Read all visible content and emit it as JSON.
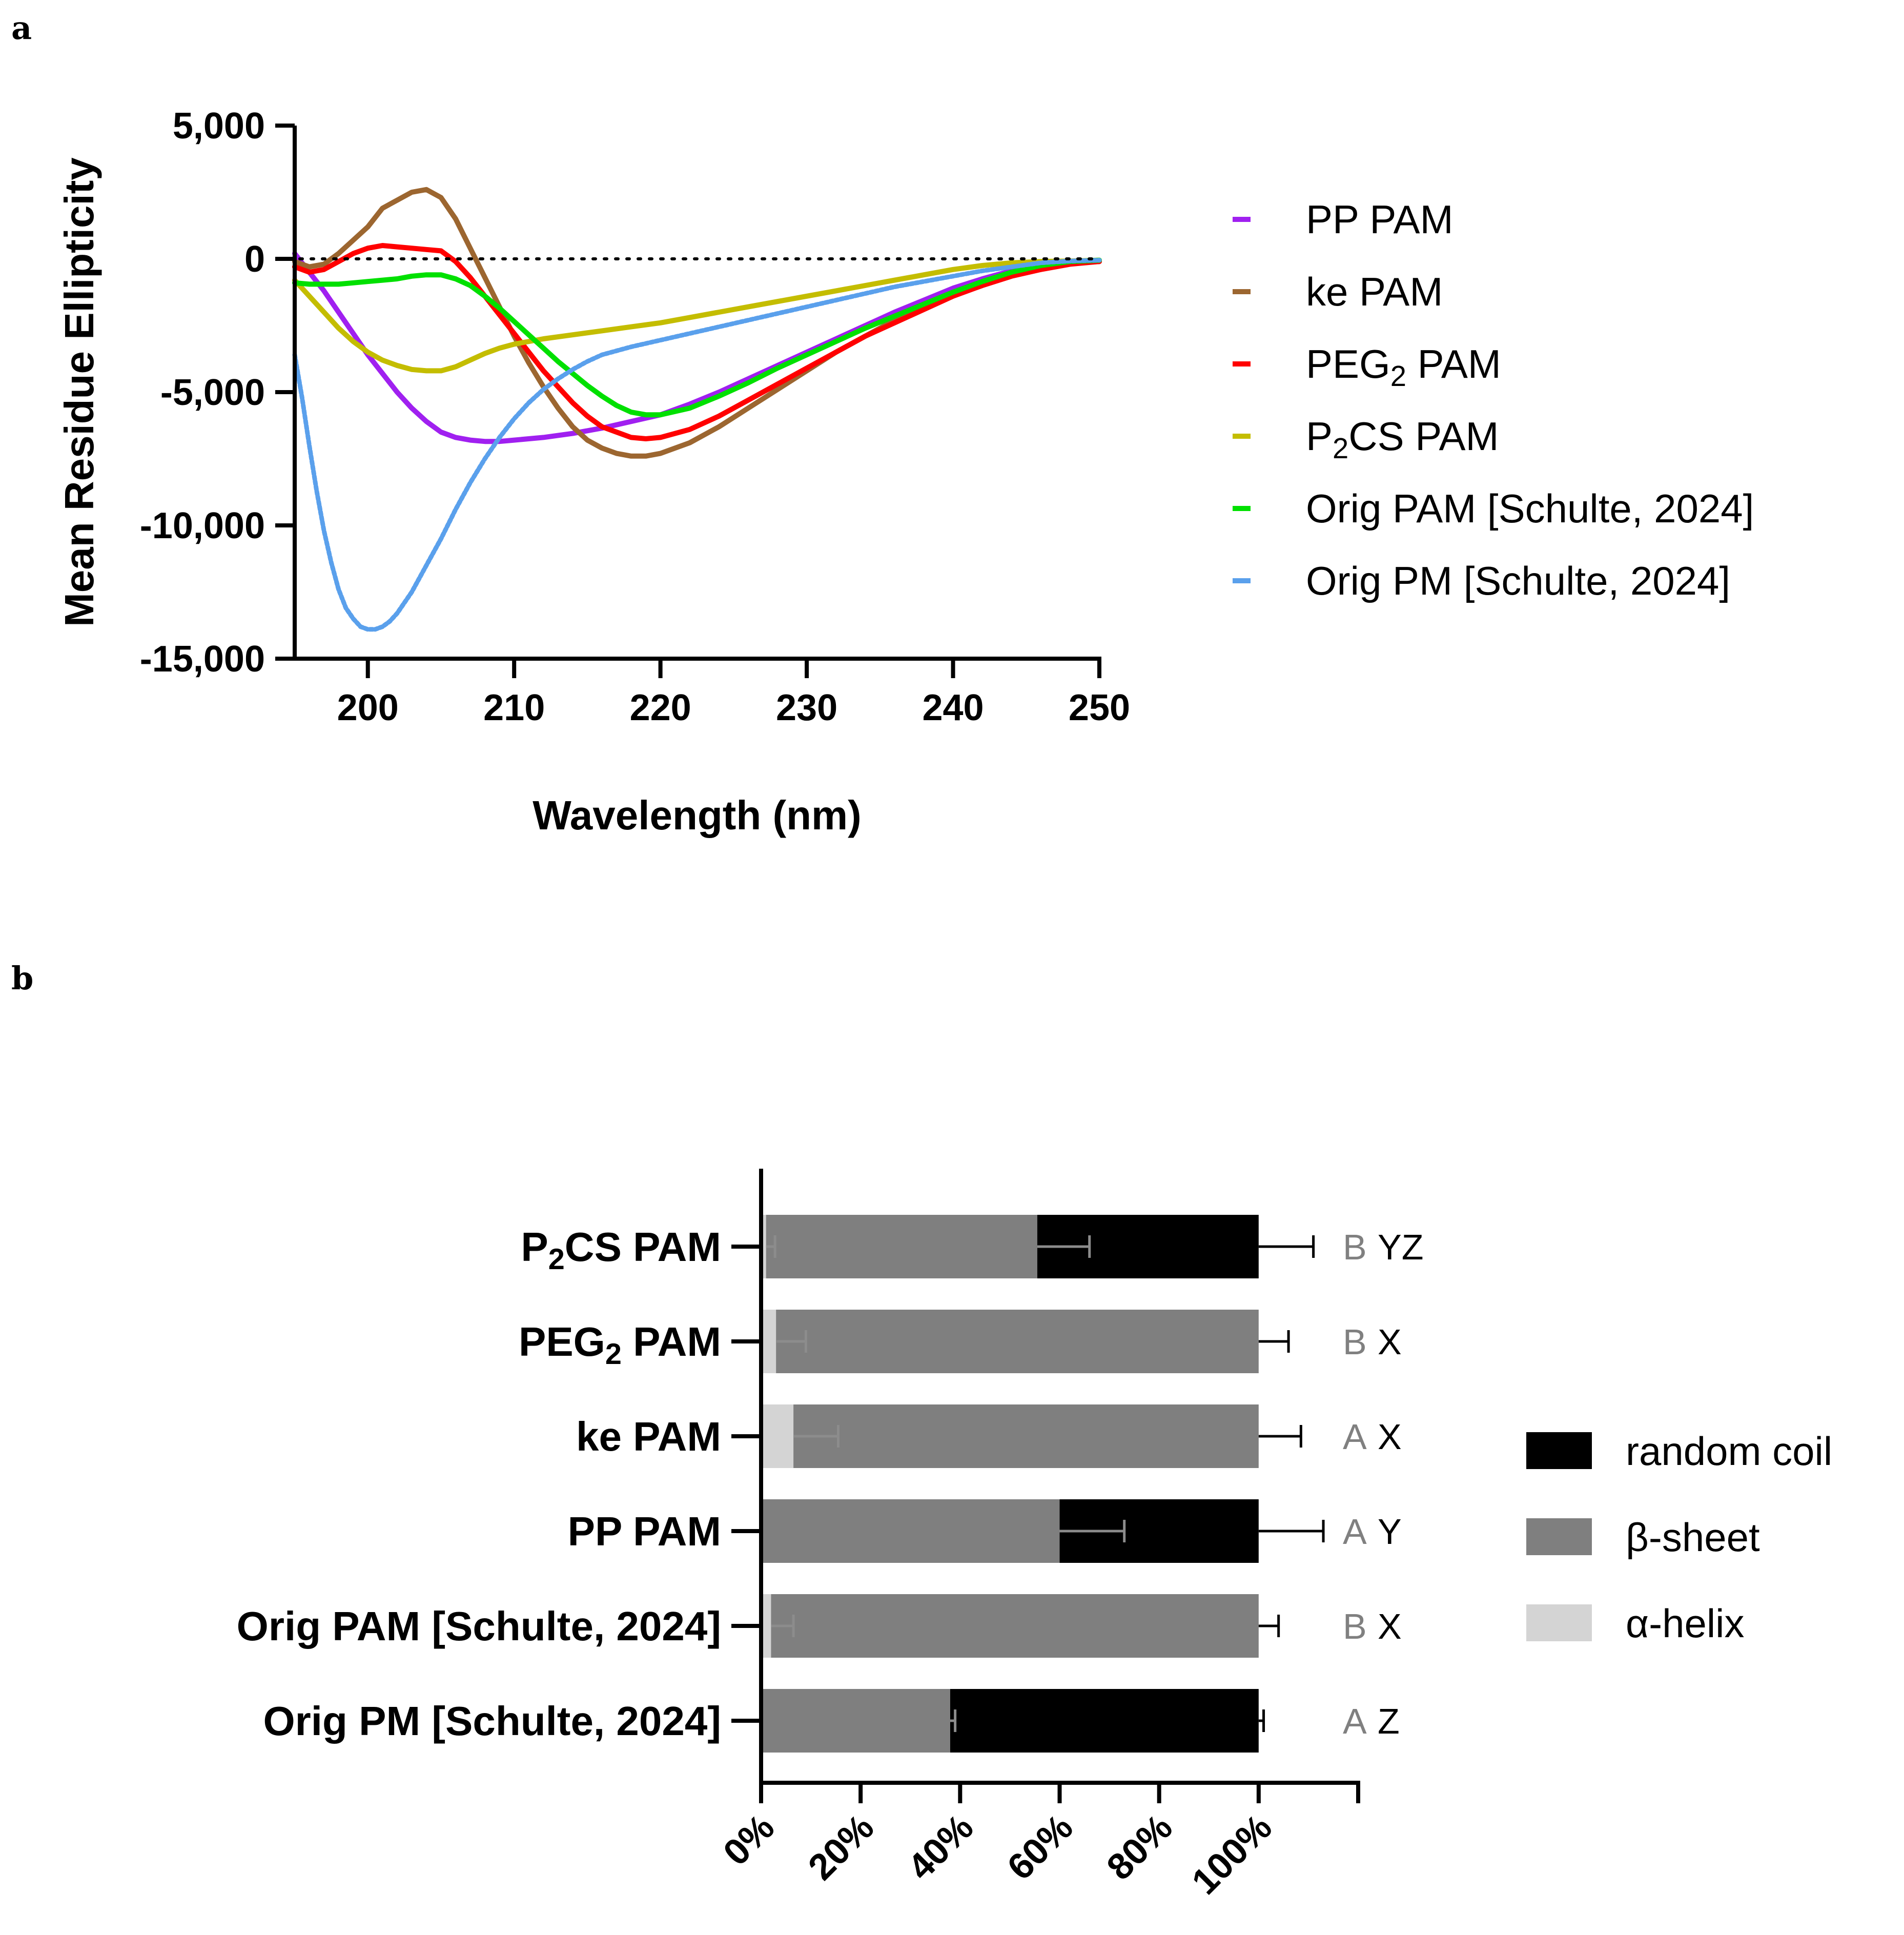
{
  "panels": {
    "a": "a",
    "b": "b"
  },
  "chart_data": [
    {
      "type": "line",
      "panel": "a",
      "xlabel": "Wavelength  (nm)",
      "ylabel": "Mean Residue  Ellipticity",
      "xlim": [
        195,
        250
      ],
      "ylim": [
        -15000,
        5000
      ],
      "xticks": [
        200,
        210,
        220,
        230,
        240,
        250
      ],
      "xtick_labels": [
        "200",
        "210",
        "220",
        "230",
        "240",
        "250"
      ],
      "yticks": [
        5000,
        0,
        -5000,
        -10000,
        -15000
      ],
      "ytick_labels": [
        "5,000",
        "0",
        "-5,000",
        "-10,000",
        "-15,000"
      ],
      "reference_line": {
        "y": 0,
        "style": "dotted"
      },
      "legend_position": "right",
      "series": [
        {
          "name": "PP PAM",
          "name_main": "PP PAM",
          "name_sub": "",
          "name_rest": "",
          "color": "#a020f0",
          "x": [
            195,
            196,
            197,
            198,
            199,
            200,
            201,
            202,
            203,
            204,
            205,
            206,
            207,
            208,
            209,
            210,
            212,
            214,
            216,
            218,
            220,
            222,
            224,
            226,
            228,
            230,
            232,
            234,
            236,
            238,
            240,
            242,
            244,
            246,
            248,
            250
          ],
          "y": [
            200,
            -500,
            -1200,
            -2000,
            -2800,
            -3600,
            -4300,
            -5000,
            -5600,
            -6100,
            -6500,
            -6700,
            -6800,
            -6850,
            -6850,
            -6800,
            -6700,
            -6550,
            -6350,
            -6100,
            -5850,
            -5450,
            -5000,
            -4500,
            -4000,
            -3500,
            -3000,
            -2500,
            -2000,
            -1550,
            -1100,
            -750,
            -450,
            -250,
            -150,
            -100
          ]
        },
        {
          "name": "ke PAM",
          "name_main": "ke PAM",
          "name_sub": "",
          "name_rest": "",
          "color": "#9c6630",
          "x": [
            195,
            196,
            197,
            198,
            199,
            200,
            201,
            202,
            203,
            204,
            205,
            206,
            207,
            208,
            209,
            210,
            211,
            212,
            213,
            214,
            215,
            216,
            217,
            218,
            219,
            220,
            222,
            224,
            226,
            228,
            230,
            232,
            234,
            236,
            238,
            240,
            242,
            244,
            246,
            248,
            250
          ],
          "y": [
            -100,
            -300,
            -200,
            200,
            700,
            1200,
            1900,
            2200,
            2500,
            2600,
            2300,
            1500,
            400,
            -700,
            -1800,
            -2900,
            -3900,
            -4800,
            -5600,
            -6300,
            -6800,
            -7100,
            -7300,
            -7400,
            -7400,
            -7300,
            -6900,
            -6300,
            -5600,
            -4900,
            -4200,
            -3500,
            -2900,
            -2300,
            -1800,
            -1300,
            -900,
            -550,
            -300,
            -150,
            -100
          ]
        },
        {
          "name": "PEG2 PAM",
          "name_main": "PEG",
          "name_sub": "2",
          "name_rest": " PAM",
          "color": "#ff0000",
          "x": [
            195,
            196,
            197,
            198,
            199,
            200,
            201,
            202,
            203,
            204,
            205,
            206,
            207,
            208,
            209,
            210,
            211,
            212,
            213,
            214,
            215,
            216,
            217,
            218,
            219,
            220,
            222,
            224,
            226,
            228,
            230,
            232,
            234,
            236,
            238,
            240,
            242,
            244,
            246,
            248,
            250
          ],
          "y": [
            -300,
            -500,
            -400,
            -100,
            200,
            400,
            500,
            450,
            400,
            350,
            300,
            -100,
            -700,
            -1400,
            -2100,
            -2800,
            -3500,
            -4200,
            -4800,
            -5400,
            -5900,
            -6300,
            -6500,
            -6700,
            -6750,
            -6700,
            -6400,
            -5900,
            -5300,
            -4700,
            -4100,
            -3500,
            -2900,
            -2400,
            -1900,
            -1400,
            -1000,
            -650,
            -400,
            -200,
            -100
          ]
        },
        {
          "name": "P2CS PAM",
          "name_main": "P",
          "name_sub": "2",
          "name_rest": "CS PAM",
          "color": "#c4bd00",
          "x": [
            195,
            196,
            197,
            198,
            199,
            200,
            201,
            202,
            203,
            204,
            205,
            206,
            207,
            208,
            209,
            210,
            212,
            214,
            216,
            218,
            220,
            222,
            224,
            226,
            228,
            230,
            232,
            234,
            236,
            238,
            240,
            242,
            244,
            246,
            248,
            250
          ],
          "y": [
            -800,
            -1400,
            -2000,
            -2600,
            -3100,
            -3500,
            -3800,
            -4000,
            -4150,
            -4200,
            -4200,
            -4050,
            -3800,
            -3550,
            -3350,
            -3200,
            -3000,
            -2850,
            -2700,
            -2550,
            -2400,
            -2200,
            -2000,
            -1800,
            -1600,
            -1400,
            -1200,
            -1000,
            -800,
            -600,
            -400,
            -250,
            -150,
            -100,
            -80,
            -50
          ]
        },
        {
          "name": "Orig PAM [Schulte, 2024]",
          "name_main": "Orig PAM [Schulte, 2024]",
          "name_sub": "",
          "name_rest": "",
          "color": "#00e000",
          "x": [
            195,
            196,
            197,
            198,
            199,
            200,
            201,
            202,
            203,
            204,
            205,
            206,
            207,
            208,
            209,
            210,
            211,
            212,
            213,
            214,
            215,
            216,
            217,
            218,
            219,
            220,
            222,
            224,
            226,
            228,
            230,
            232,
            234,
            236,
            238,
            240,
            242,
            244,
            246,
            248,
            250
          ],
          "y": [
            -900,
            -950,
            -950,
            -950,
            -900,
            -850,
            -800,
            -750,
            -650,
            -600,
            -600,
            -750,
            -1000,
            -1400,
            -1850,
            -2350,
            -2850,
            -3350,
            -3850,
            -4300,
            -4750,
            -5150,
            -5500,
            -5750,
            -5850,
            -5850,
            -5600,
            -5150,
            -4650,
            -4100,
            -3600,
            -3100,
            -2600,
            -2150,
            -1700,
            -1250,
            -850,
            -500,
            -250,
            -100,
            -50
          ]
        },
        {
          "name": "Orig PM [Schulte, 2024]",
          "name_main": "Orig PM [Schulte, 2024]",
          "name_sub": "",
          "name_rest": "",
          "color": "#5aa0ec",
          "x": [
            195,
            195.5,
            196,
            196.5,
            197,
            197.5,
            198,
            198.5,
            199,
            199.5,
            200,
            200.5,
            201,
            201.5,
            202,
            203,
            204,
            205,
            206,
            207,
            208,
            209,
            210,
            211,
            212,
            213,
            214,
            215,
            216,
            218,
            220,
            222,
            224,
            226,
            228,
            230,
            232,
            234,
            236,
            238,
            240,
            242,
            244,
            246,
            248,
            250
          ],
          "y": [
            -3600,
            -5200,
            -7000,
            -8700,
            -10200,
            -11400,
            -12400,
            -13100,
            -13500,
            -13800,
            -13900,
            -13900,
            -13800,
            -13600,
            -13300,
            -12500,
            -11500,
            -10500,
            -9400,
            -8400,
            -7500,
            -6700,
            -6000,
            -5400,
            -4900,
            -4500,
            -4150,
            -3850,
            -3600,
            -3300,
            -3050,
            -2800,
            -2550,
            -2300,
            -2050,
            -1800,
            -1550,
            -1300,
            -1050,
            -850,
            -650,
            -450,
            -300,
            -150,
            -80,
            -50
          ]
        }
      ]
    },
    {
      "type": "bar",
      "panel": "b",
      "orientation": "horizontal",
      "stacked": true,
      "xlim": [
        0,
        120
      ],
      "xticks": [
        0,
        20,
        40,
        60,
        80,
        100
      ],
      "xtick_labels": [
        "0%",
        "20%",
        "40%",
        "60%",
        "80%",
        "100%"
      ],
      "legend_position": "right",
      "series": [
        {
          "name": "α-helix",
          "color": "#d4d4d4"
        },
        {
          "name": "β-sheet",
          "color": "#7f7f7f"
        },
        {
          "name": "random coil",
          "color": "#000000"
        }
      ],
      "legend_order": [
        2,
        1,
        0
      ],
      "categories": [
        {
          "label": "P2CS PAM",
          "label_main": "P",
          "label_sub": "2",
          "label_rest": "CS PAM",
          "values": [
            1,
            54.5,
            44.5
          ],
          "err": [
            1.8,
            10.5,
            11
          ],
          "sig1": "B",
          "sig2": "YZ"
        },
        {
          "label": "PEG2 PAM",
          "label_main": "PEG",
          "label_sub": "2",
          "label_rest": " PAM",
          "values": [
            3,
            97,
            0
          ],
          "err": [
            6,
            0,
            6
          ],
          "sig1": "B",
          "sig2": "X"
        },
        {
          "label": "ke PAM",
          "label_main": "ke PAM",
          "label_sub": "",
          "label_rest": "",
          "values": [
            6.5,
            93.5,
            0
          ],
          "err": [
            9,
            0,
            8.5
          ],
          "sig1": "A",
          "sig2": "X"
        },
        {
          "label": "PP PAM",
          "label_main": "PP PAM",
          "label_sub": "",
          "label_rest": "",
          "values": [
            0,
            60,
            40
          ],
          "err": [
            0,
            13,
            13
          ],
          "sig1": "A",
          "sig2": "Y"
        },
        {
          "label": "Orig PAM [Schulte, 2024]",
          "label_main": "Orig PAM [Schulte, 2024]",
          "label_sub": "",
          "label_rest": "",
          "values": [
            2,
            98,
            0
          ],
          "err": [
            4.5,
            0,
            4
          ],
          "sig1": "B",
          "sig2": "X"
        },
        {
          "label": "Orig PM [Schulte, 2024]",
          "label_main": "Orig PM [Schulte, 2024]",
          "label_sub": "",
          "label_rest": "",
          "values": [
            0,
            38,
            62
          ],
          "err": [
            0,
            1,
            1
          ],
          "sig1": "A",
          "sig2": "Z"
        }
      ],
      "sig_colors": {
        "sig1": "#808080",
        "sig2": "#000000"
      }
    }
  ]
}
